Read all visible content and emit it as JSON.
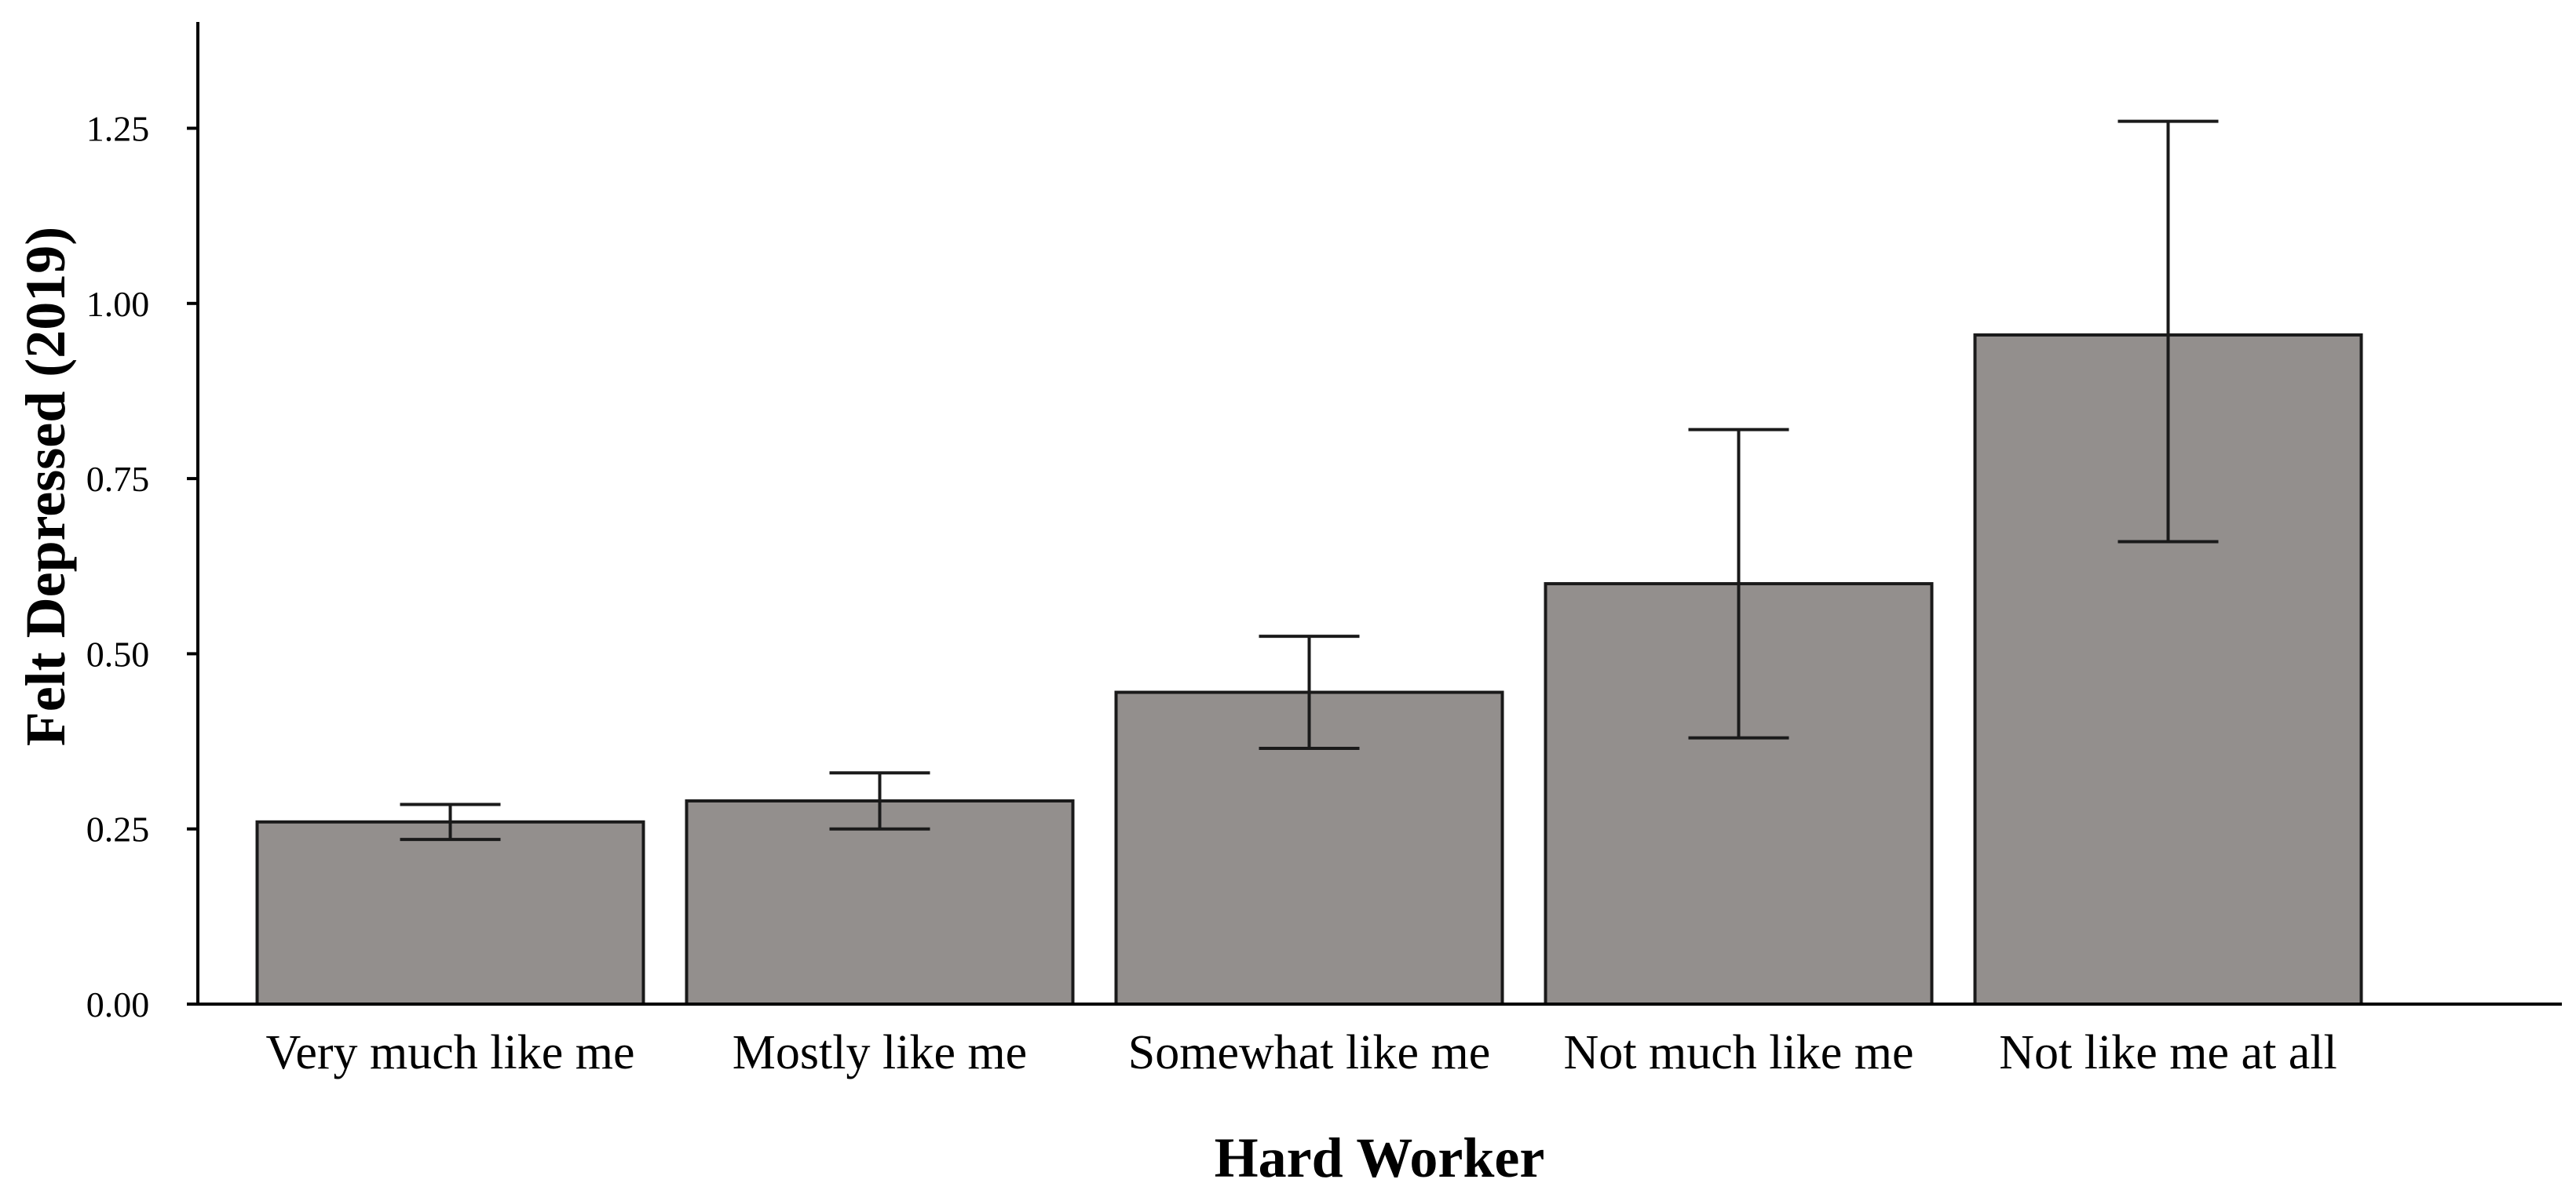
{
  "chart_data": {
    "type": "bar",
    "categories": [
      "Very much like me",
      "Mostly like me",
      "Somewhat like me",
      "Not much like me",
      "Not like me at all"
    ],
    "values": [
      0.26,
      0.29,
      0.445,
      0.6,
      0.955
    ],
    "error_bars": [
      {
        "low": 0.235,
        "high": 0.285
      },
      {
        "low": 0.25,
        "high": 0.33
      },
      {
        "low": 0.365,
        "high": 0.525
      },
      {
        "low": 0.38,
        "high": 0.82
      },
      {
        "low": 0.66,
        "high": 1.26
      }
    ],
    "xlabel": "Hard Worker",
    "ylabel": "Felt Depressed (2019)",
    "ylim": [
      0,
      1.4
    ],
    "yticks": [
      "0.00",
      "0.25",
      "0.50",
      "0.75",
      "1.00",
      "1.25"
    ],
    "ytick_values": [
      0,
      0.25,
      0.5,
      0.75,
      1.0,
      1.25
    ],
    "bar_color": "#938f8d",
    "bar_outline_color": "#1a1a1a",
    "error_bar_color": "#1a1a1a",
    "grid": false,
    "legend": "none"
  }
}
